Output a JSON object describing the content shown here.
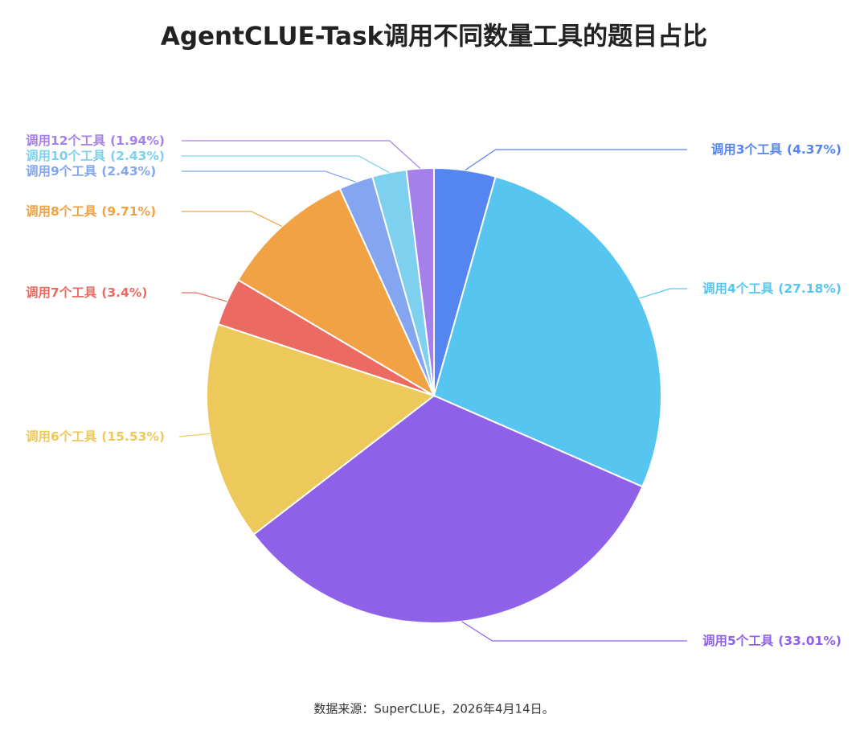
{
  "chart_data": {
    "type": "pie",
    "title": "AgentCLUE-Task调用不同数量工具的题目占比",
    "categories": [
      "调用3个工具",
      "调用4个工具",
      "调用5个工具",
      "调用6个工具",
      "调用7个工具",
      "调用8个工具",
      "调用9个工具",
      "调用10个工具",
      "调用12个工具"
    ],
    "values": [
      4.37,
      27.18,
      33.01,
      15.53,
      3.4,
      9.71,
      2.43,
      2.43,
      1.94
    ],
    "value_labels": [
      "(4.37%)",
      "(27.18%)",
      "(33.01%)",
      "(15.53%)",
      "(3.4%)",
      "(9.71%)",
      "(2.43%)",
      "(2.43%)",
      "(1.94%)"
    ],
    "colors": [
      "#5585f0",
      "#56c6f0",
      "#8f60e8",
      "#ecc95a",
      "#eb6b63",
      "#f0a244",
      "#84a5f0",
      "#7dd0ee",
      "#a57fea"
    ],
    "source": "数据来源：SuperCLUE，2026年4月14日。"
  }
}
